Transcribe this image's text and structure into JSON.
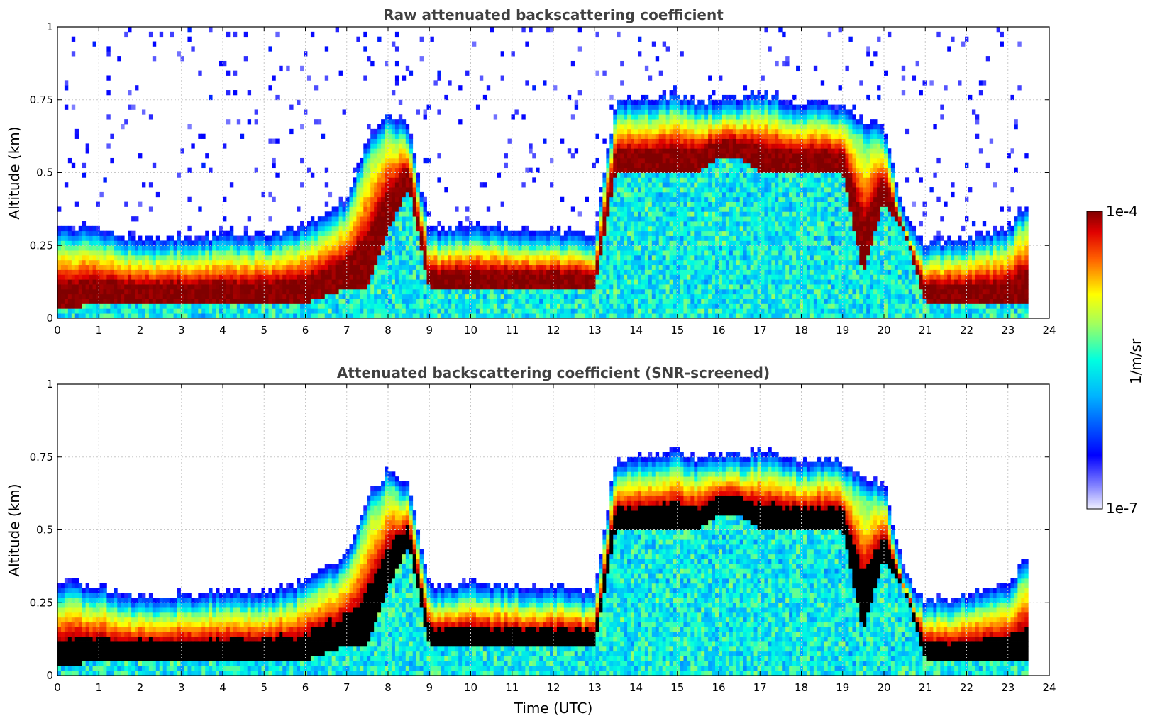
{
  "chart_data": [
    {
      "type": "heatmap",
      "title": "Raw attenuated backscattering coefficient",
      "xlabel": "",
      "ylabel": "Altitude (km)",
      "xlim": [
        0,
        24
      ],
      "ylim": [
        0,
        1
      ],
      "xticks": [
        0,
        1,
        2,
        3,
        4,
        5,
        6,
        7,
        8,
        9,
        10,
        11,
        12,
        13,
        14,
        15,
        16,
        17,
        18,
        19,
        20,
        21,
        22,
        23,
        24
      ],
      "yticks": [
        0,
        0.25,
        0.5,
        0.75,
        1
      ],
      "ytick_labels": [
        "0",
        "0.25",
        "0.5",
        "0.75",
        "1"
      ],
      "grid": true,
      "screened": false,
      "layers": {
        "time": [
          0,
          1,
          2,
          3,
          4,
          5,
          6,
          7,
          7.5,
          8,
          8.5,
          9,
          10,
          11,
          12,
          13,
          13.5,
          14,
          14.5,
          15,
          15.5,
          16,
          16.5,
          17,
          17.5,
          18,
          19,
          19.5,
          20,
          20.5,
          21,
          22,
          23,
          23.5
        ],
        "layer_bottom_km": [
          0.03,
          0.05,
          0.05,
          0.05,
          0.05,
          0.05,
          0.05,
          0.1,
          0.1,
          0.3,
          0.45,
          0.1,
          0.1,
          0.1,
          0.1,
          0.1,
          0.5,
          0.5,
          0.5,
          0.5,
          0.5,
          0.55,
          0.55,
          0.5,
          0.5,
          0.5,
          0.5,
          0.15,
          0.4,
          0.3,
          0.05,
          0.05,
          0.05,
          0.05
        ],
        "layer_top_km": [
          0.26,
          0.25,
          0.21,
          0.22,
          0.23,
          0.23,
          0.26,
          0.35,
          0.55,
          0.65,
          0.6,
          0.25,
          0.26,
          0.25,
          0.25,
          0.22,
          0.68,
          0.7,
          0.7,
          0.72,
          0.68,
          0.7,
          0.7,
          0.72,
          0.7,
          0.68,
          0.68,
          0.62,
          0.6,
          0.3,
          0.2,
          0.22,
          0.25,
          0.35
        ]
      }
    },
    {
      "type": "heatmap",
      "title": "Attenuated backscattering coefficient (SNR-screened)",
      "xlabel": "Time (UTC)",
      "ylabel": "Altitude (km)",
      "xlim": [
        0,
        24
      ],
      "ylim": [
        0,
        1
      ],
      "xticks": [
        0,
        1,
        2,
        3,
        4,
        5,
        6,
        7,
        8,
        9,
        10,
        11,
        12,
        13,
        14,
        15,
        16,
        17,
        18,
        19,
        20,
        21,
        22,
        23,
        24
      ],
      "yticks": [
        0,
        0.25,
        0.5,
        0.75,
        1
      ],
      "ytick_labels": [
        "0",
        "0.25",
        "0.5",
        "0.75",
        "1"
      ],
      "grid": true,
      "screened": true,
      "layers": {
        "time": [
          0,
          1,
          2,
          3,
          4,
          5,
          6,
          7,
          7.5,
          8,
          8.5,
          9,
          10,
          11,
          12,
          13,
          13.5,
          14,
          14.5,
          15,
          15.5,
          16,
          16.5,
          17,
          17.5,
          18,
          19,
          19.5,
          20,
          20.5,
          21,
          22,
          23,
          23.5
        ],
        "layer_bottom_km": [
          0.03,
          0.05,
          0.05,
          0.05,
          0.05,
          0.05,
          0.05,
          0.1,
          0.1,
          0.3,
          0.45,
          0.1,
          0.1,
          0.1,
          0.1,
          0.1,
          0.5,
          0.5,
          0.5,
          0.5,
          0.5,
          0.55,
          0.55,
          0.5,
          0.5,
          0.5,
          0.5,
          0.15,
          0.4,
          0.3,
          0.05,
          0.05,
          0.05,
          0.05
        ],
        "layer_top_km": [
          0.26,
          0.25,
          0.21,
          0.22,
          0.23,
          0.23,
          0.26,
          0.35,
          0.55,
          0.65,
          0.6,
          0.25,
          0.26,
          0.25,
          0.25,
          0.22,
          0.68,
          0.7,
          0.7,
          0.72,
          0.68,
          0.7,
          0.7,
          0.72,
          0.7,
          0.68,
          0.68,
          0.62,
          0.6,
          0.3,
          0.2,
          0.22,
          0.25,
          0.35
        ]
      }
    }
  ],
  "colorbar": {
    "label": "1/m/sr",
    "max_label": "1e-4",
    "min_label": "1e-7",
    "scale": "log",
    "range": [
      1e-07,
      0.0001
    ],
    "colormap": "jet",
    "colors": [
      "#f0f0ff",
      "#0000ff",
      "#00ffff",
      "#ffff00",
      "#ff0000",
      "#800000"
    ]
  }
}
